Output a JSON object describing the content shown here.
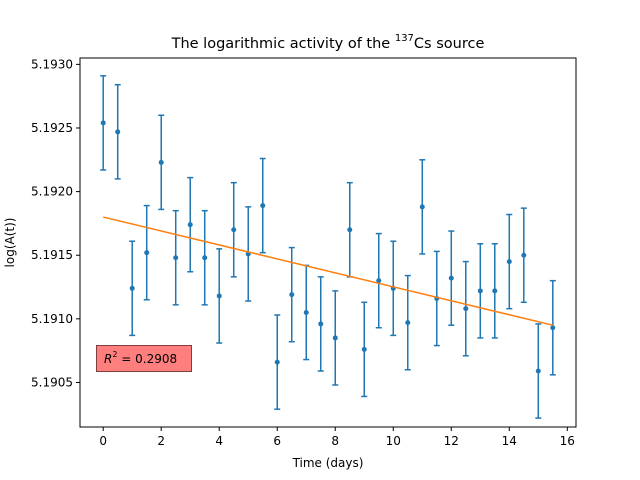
{
  "chart_data": {
    "type": "scatter",
    "title": {
      "prefix": "The logarithmic activity of the ",
      "superscript": "137",
      "suffix": "Cs source"
    },
    "xlabel": "Time (days)",
    "ylabel": "log(A(t))",
    "xlim": [
      -0.8,
      16.3
    ],
    "ylim": [
      5.19015,
      5.19305
    ],
    "x_ticks": [
      0,
      2,
      4,
      6,
      8,
      10,
      12,
      14,
      16
    ],
    "x_tick_labels": [
      "0",
      "2",
      "4",
      "6",
      "8",
      "10",
      "12",
      "14",
      "16"
    ],
    "y_ticks": [
      5.1905,
      5.191,
      5.1915,
      5.192,
      5.1925,
      5.193
    ],
    "y_tick_labels": [
      "5.1905",
      "5.1910",
      "5.1915",
      "5.1920",
      "5.1925",
      "5.1930"
    ],
    "grid": false,
    "series": [
      {
        "kind": "errorbar",
        "color": "#1f77b4",
        "points": [
          {
            "x": 0.0,
            "y": 5.19254,
            "err": 0.00037
          },
          {
            "x": 0.5,
            "y": 5.19247,
            "err": 0.00037
          },
          {
            "x": 1.0,
            "y": 5.19124,
            "err": 0.00037
          },
          {
            "x": 1.5,
            "y": 5.19152,
            "err": 0.00037
          },
          {
            "x": 2.0,
            "y": 5.19223,
            "err": 0.00037
          },
          {
            "x": 2.5,
            "y": 5.19148,
            "err": 0.00037
          },
          {
            "x": 3.0,
            "y": 5.19174,
            "err": 0.00037
          },
          {
            "x": 3.5,
            "y": 5.19148,
            "err": 0.00037
          },
          {
            "x": 4.0,
            "y": 5.19118,
            "err": 0.00037
          },
          {
            "x": 4.5,
            "y": 5.1917,
            "err": 0.00037
          },
          {
            "x": 5.0,
            "y": 5.19151,
            "err": 0.00037
          },
          {
            "x": 5.5,
            "y": 5.19189,
            "err": 0.00037
          },
          {
            "x": 6.0,
            "y": 5.19066,
            "err": 0.00037
          },
          {
            "x": 6.5,
            "y": 5.19119,
            "err": 0.00037
          },
          {
            "x": 7.0,
            "y": 5.19105,
            "err": 0.00037
          },
          {
            "x": 7.5,
            "y": 5.19096,
            "err": 0.00037
          },
          {
            "x": 8.0,
            "y": 5.19085,
            "err": 0.00037
          },
          {
            "x": 8.5,
            "y": 5.1917,
            "err": 0.00037
          },
          {
            "x": 9.0,
            "y": 5.19076,
            "err": 0.00037
          },
          {
            "x": 9.5,
            "y": 5.1913,
            "err": 0.00037
          },
          {
            "x": 10.0,
            "y": 5.19124,
            "err": 0.00037
          },
          {
            "x": 10.5,
            "y": 5.19097,
            "err": 0.00037
          },
          {
            "x": 11.0,
            "y": 5.19188,
            "err": 0.00037
          },
          {
            "x": 11.5,
            "y": 5.19116,
            "err": 0.00037
          },
          {
            "x": 12.0,
            "y": 5.19132,
            "err": 0.00037
          },
          {
            "x": 12.5,
            "y": 5.19108,
            "err": 0.00037
          },
          {
            "x": 13.0,
            "y": 5.19122,
            "err": 0.00037
          },
          {
            "x": 13.5,
            "y": 5.19122,
            "err": 0.00037
          },
          {
            "x": 14.0,
            "y": 5.19145,
            "err": 0.00037
          },
          {
            "x": 14.5,
            "y": 5.1915,
            "err": 0.00037
          },
          {
            "x": 15.0,
            "y": 5.19059,
            "err": 0.00037
          },
          {
            "x": 15.5,
            "y": 5.19093,
            "err": 0.00037
          }
        ]
      },
      {
        "kind": "fit-line",
        "color": "#ff7f0e",
        "x": [
          0.0,
          15.5
        ],
        "y": [
          5.1918,
          5.19095
        ]
      }
    ],
    "annotation": {
      "r2_label": "R",
      "r2_sup": "2",
      "r2_value": " = 0.2908",
      "position": "lower-left",
      "box_color": "#ff7f7f",
      "edge_color": "#7f3f3f"
    }
  }
}
